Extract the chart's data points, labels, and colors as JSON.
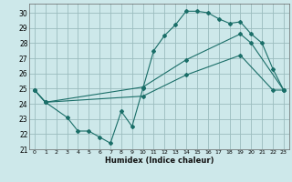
{
  "xlabel": "Humidex (Indice chaleur)",
  "bg_color": "#cde8ea",
  "grid_color": "#9bbcbe",
  "line_color": "#1a6e68",
  "xlim": [
    -0.5,
    23.5
  ],
  "ylim": [
    21,
    30.6
  ],
  "xticks": [
    0,
    1,
    2,
    3,
    4,
    5,
    6,
    7,
    8,
    9,
    10,
    11,
    12,
    13,
    14,
    15,
    16,
    17,
    18,
    19,
    20,
    21,
    22,
    23
  ],
  "yticks": [
    21,
    22,
    23,
    24,
    25,
    26,
    27,
    28,
    29,
    30
  ],
  "line1_x": [
    0,
    1,
    3,
    4,
    5,
    6,
    7,
    8,
    9,
    10,
    11,
    12,
    13,
    14,
    15,
    16,
    17,
    18,
    19,
    20,
    21,
    22,
    23
  ],
  "line1_y": [
    24.9,
    24.1,
    23.1,
    22.2,
    22.2,
    21.8,
    21.4,
    23.5,
    22.5,
    25.0,
    27.5,
    28.5,
    29.2,
    30.1,
    30.1,
    30.0,
    29.6,
    29.3,
    29.4,
    28.6,
    28.0,
    26.3,
    24.9
  ],
  "line2_x": [
    0,
    1,
    10,
    14,
    19,
    20,
    23
  ],
  "line2_y": [
    24.9,
    24.1,
    25.1,
    26.9,
    28.6,
    28.0,
    24.9
  ],
  "line3_x": [
    0,
    1,
    10,
    14,
    19,
    22,
    23
  ],
  "line3_y": [
    24.9,
    24.1,
    24.5,
    25.9,
    27.2,
    24.9,
    24.9
  ]
}
